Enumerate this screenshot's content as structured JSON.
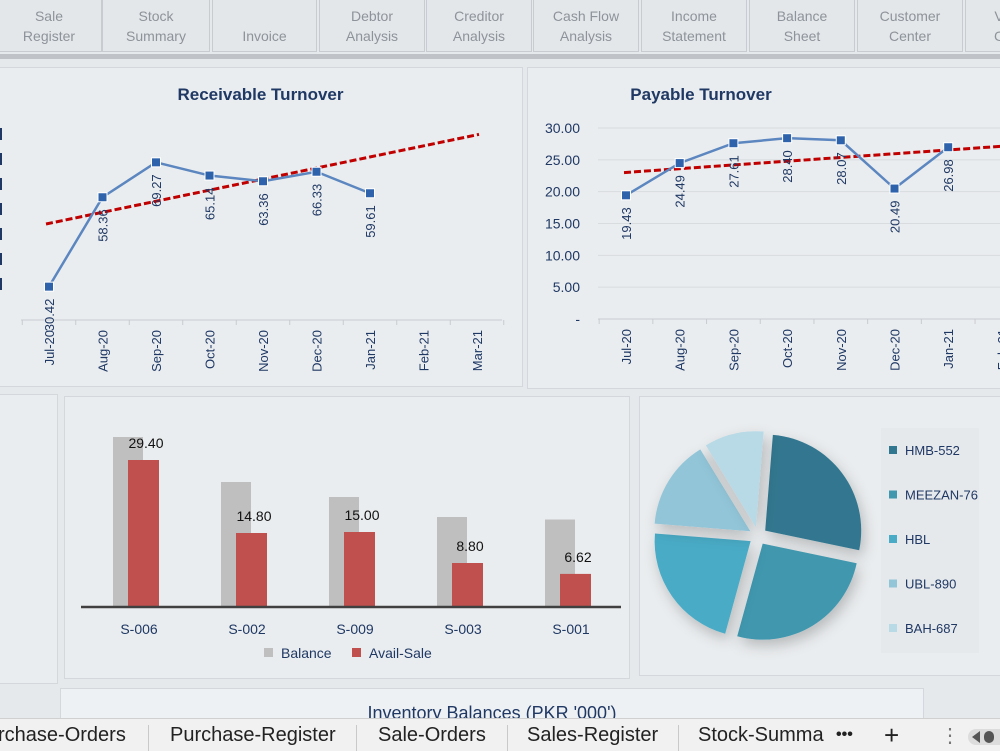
{
  "nav": {
    "items": [
      {
        "label": "Sale\nRegister"
      },
      {
        "label": "Stock\nSummary"
      },
      {
        "label": "Invoice"
      },
      {
        "label": "Debtor\nAnalysis"
      },
      {
        "label": "Creditor\nAnalysis"
      },
      {
        "label": "Cash Flow\nAnalysis"
      },
      {
        "label": "Income\nStatement"
      },
      {
        "label": "Balance\nSheet"
      },
      {
        "label": "Customer\nCenter"
      },
      {
        "label": "V\nC"
      }
    ]
  },
  "receivable": {
    "chart_data": {
      "type": "line",
      "title": "Receivable Turnover",
      "categories": [
        "Jul-20",
        "Aug-20",
        "Sep-20",
        "Oct-20",
        "Nov-20",
        "Dec-20",
        "Jan-21",
        "Feb-21",
        "Mar-21"
      ],
      "series": [
        {
          "values": [
            30.42,
            58.36,
            69.27,
            65.14,
            63.36,
            66.33,
            59.61,
            null,
            null
          ]
        }
      ],
      "trendline": {
        "start": 50.0,
        "end": 78.0,
        "style": "dashed"
      },
      "ylim": [
        20,
        80
      ],
      "grid": false,
      "colors": {
        "line": "#5b86c0",
        "marker": "#2e63ac",
        "trend": "#c00000"
      }
    }
  },
  "payable": {
    "chart_data": {
      "type": "line",
      "title": "Payable Turnover",
      "categories": [
        "Jul-20",
        "Aug-20",
        "Sep-20",
        "Oct-20",
        "Nov-20",
        "Dec-20",
        "Jan-21",
        "Feb-21"
      ],
      "series": [
        {
          "values": [
            19.43,
            24.49,
            27.61,
            28.4,
            28.07,
            20.49,
            26.98,
            null
          ]
        }
      ],
      "trendline": {
        "start": 23.0,
        "end": 27.2,
        "style": "dashed"
      },
      "yticks": [
        "30.00",
        "25.00",
        "20.00",
        "15.00",
        "10.00",
        "5.00",
        "-"
      ],
      "ytick_values": [
        30,
        25,
        20,
        15,
        10,
        5,
        0
      ],
      "ylim": [
        0,
        30
      ],
      "grid": true,
      "colors": {
        "line": "#5b86c0",
        "marker": "#2e63ac",
        "trend": "#c00000"
      }
    }
  },
  "bars": {
    "chart_data": {
      "type": "bar",
      "categories": [
        "S-006",
        "S-002",
        "S-009",
        "S-003",
        "S-001"
      ],
      "series": [
        {
          "name": "Balance",
          "values": [
            34.0,
            25.0,
            22.0,
            18.0,
            17.5
          ]
        },
        {
          "name": "Avail-Sale",
          "values": [
            29.4,
            14.8,
            15.0,
            8.8,
            6.62
          ]
        }
      ],
      "data_labels": [
        "29.40",
        "14.80",
        "15.00",
        "8.80",
        "6.62"
      ],
      "ylim": [
        0,
        36
      ],
      "legend": "bottom",
      "colors": {
        "Balance": "#bfbfbf",
        "Avail-Sale": "#c0504d"
      }
    }
  },
  "pie": {
    "chart_data": {
      "type": "pie",
      "labels": [
        "HMB-552",
        "MEEZAN-76",
        "HBL",
        "UBL-890",
        "BAH-687"
      ],
      "values": [
        27,
        26,
        22,
        15,
        10
      ],
      "legend": "right",
      "colors": [
        "#31778f",
        "#4197ae",
        "#4aabc6",
        "#92c5d8",
        "#b8d9e6"
      ]
    }
  },
  "inventory_title": "Inventory Balances (PKR '000')",
  "tabs": {
    "items": [
      {
        "label": "rchase-Orders"
      },
      {
        "label": "Purchase-Register"
      },
      {
        "label": "Sale-Orders"
      },
      {
        "label": "Sales-Register"
      },
      {
        "label": "Stock-Summa"
      }
    ],
    "more": "•••",
    "add": "+",
    "menu": "⋮"
  }
}
